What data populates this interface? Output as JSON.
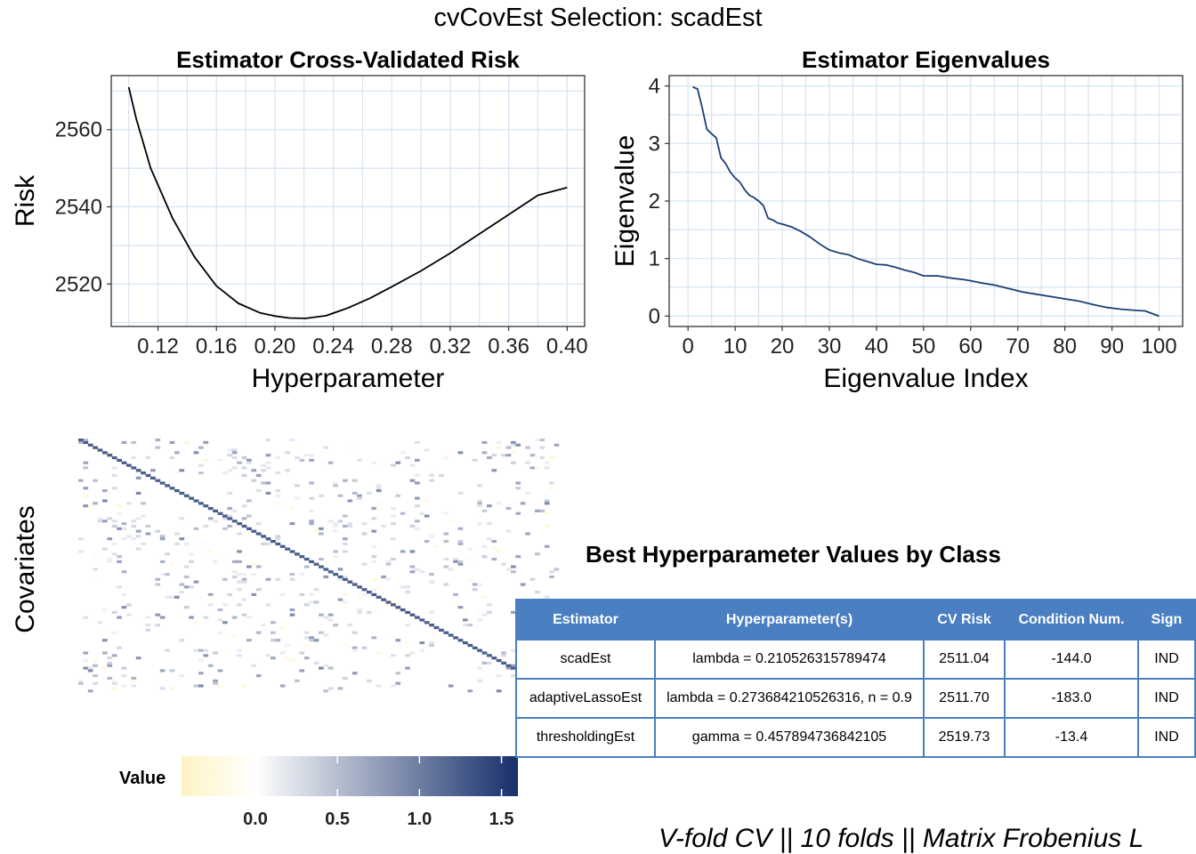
{
  "title": "cvCovEst Selection: scadEst",
  "footer": "V-fold CV  ||  10 folds  ||  Matrix Frobenius L",
  "colors": {
    "grid": "#d6e4f2",
    "line_risk": "#000000",
    "line_eigen": "#1c3f73",
    "heat_low": "#fff3c4",
    "heat_mid": "#ffffff",
    "heat_high": "#172f6b",
    "table_header": "#4a7fc1"
  },
  "chart_data": [
    {
      "type": "line",
      "title": "Estimator Cross-Validated Risk",
      "xlabel": "Hyperparameter",
      "ylabel": "Risk",
      "xlim": [
        0.088,
        0.412
      ],
      "ylim": [
        2509,
        2574
      ],
      "x_ticks": [
        "0.12",
        "0.16",
        "0.20",
        "0.24",
        "0.28",
        "0.32",
        "0.36",
        "0.40"
      ],
      "y_ticks": [
        "2520",
        "2540",
        "2560"
      ],
      "grid": true,
      "x": [
        0.1,
        0.105,
        0.115,
        0.13,
        0.145,
        0.16,
        0.175,
        0.19,
        0.2,
        0.21,
        0.221,
        0.235,
        0.25,
        0.265,
        0.28,
        0.3,
        0.32,
        0.34,
        0.36,
        0.38,
        0.4
      ],
      "y": [
        2571,
        2563,
        2550,
        2537,
        2527,
        2519.5,
        2515,
        2512.5,
        2511.7,
        2511.2,
        2511.1,
        2511.8,
        2513.8,
        2516.3,
        2519.3,
        2523.4,
        2528,
        2533,
        2538,
        2543,
        2545
      ]
    },
    {
      "type": "line",
      "title": "Estimator Eigenvalues",
      "xlabel": "Eigenvalue Index",
      "ylabel": "Eigenvalue",
      "xlim": [
        -4,
        105
      ],
      "ylim": [
        -0.18,
        4.18
      ],
      "x_ticks": [
        "0",
        "10",
        "20",
        "30",
        "40",
        "50",
        "60",
        "70",
        "80",
        "90",
        "100"
      ],
      "y_ticks": [
        "0",
        "1",
        "2",
        "3",
        "4"
      ],
      "grid": true,
      "x": [
        1,
        2,
        3,
        4,
        5,
        6,
        7,
        8,
        9,
        10,
        11,
        12,
        13,
        14,
        15,
        16,
        17,
        18,
        19,
        20,
        22,
        24,
        26,
        28,
        30,
        32,
        34,
        36,
        38,
        40,
        42,
        44,
        46,
        48,
        50,
        53,
        56,
        59,
        62,
        65,
        68,
        71,
        74,
        77,
        80,
        83,
        86,
        89,
        92,
        95,
        97,
        100
      ],
      "y": [
        3.98,
        3.95,
        3.62,
        3.25,
        3.17,
        3.1,
        2.75,
        2.65,
        2.5,
        2.4,
        2.33,
        2.2,
        2.1,
        2.06,
        2.0,
        1.92,
        1.7,
        1.67,
        1.62,
        1.6,
        1.55,
        1.47,
        1.37,
        1.25,
        1.15,
        1.1,
        1.07,
        1.0,
        0.95,
        0.9,
        0.89,
        0.85,
        0.8,
        0.76,
        0.7,
        0.7,
        0.66,
        0.63,
        0.58,
        0.54,
        0.48,
        0.42,
        0.38,
        0.34,
        0.3,
        0.26,
        0.2,
        0.15,
        0.12,
        0.1,
        0.09,
        0.0
      ]
    },
    {
      "type": "heatmap",
      "ylabel": "Covariates",
      "size": 100,
      "legend_title": "Value",
      "legend_ticks": [
        "0.0",
        "0.5",
        "1.0",
        "1.5"
      ],
      "range": [
        -0.45,
        1.6
      ]
    },
    {
      "type": "table",
      "title": "Best Hyperparameter Values by Class",
      "columns": [
        "Estimator",
        "Hyperparameter(s)",
        "CV Risk",
        "Condition Num.",
        "Sign"
      ],
      "rows": [
        [
          "scadEst",
          "lambda = 0.210526315789474",
          "2511.04",
          "-144.0",
          "IND"
        ],
        [
          "adaptiveLassoEst",
          "lambda = 0.273684210526316, n = 0.9",
          "2511.70",
          "-183.0",
          "IND"
        ],
        [
          "thresholdingEst",
          "gamma = 0.457894736842105",
          "2519.73",
          "-13.4",
          "IND"
        ]
      ]
    }
  ]
}
